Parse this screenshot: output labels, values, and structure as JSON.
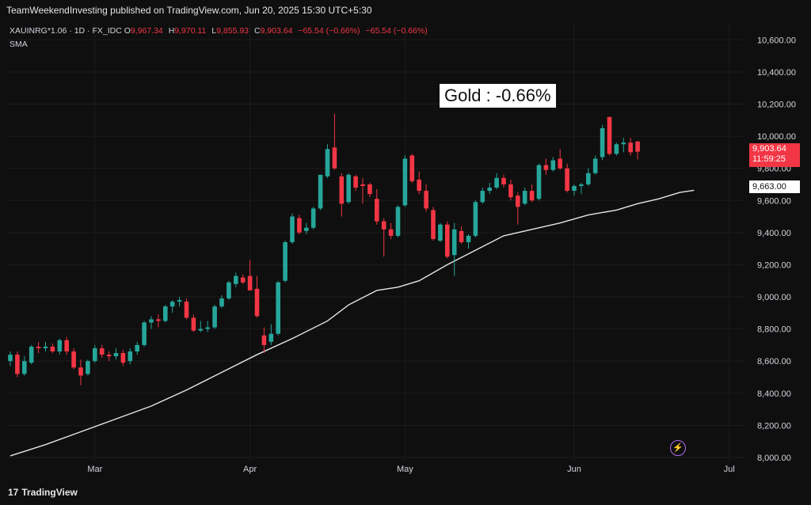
{
  "header": {
    "published": "TeamWeekendInvesting published on TradingView.com, Jun 20, 2025 15:30 UTC+5:30"
  },
  "legend": {
    "symbol": "XAUINRG*1.06 · 1D · FX_IDC",
    "o_label": "O",
    "o_value": "9,967.34",
    "h_label": "H",
    "h_value": "9,970.11",
    "l_label": "L",
    "l_value": "9,855.93",
    "c_label": "C",
    "c_value": "9,903.64",
    "change": "−65.54 (−0.66%)",
    "change2": "−65.54 (−0.66%)",
    "indicator": "SMA"
  },
  "annotation": "Gold : -0.66%",
  "price_tags": {
    "last_price": "9,903.64",
    "countdown": "11:59:25",
    "sma_value": "9,663.00"
  },
  "footer": {
    "brand": "TradingView",
    "brand_mark": "17"
  },
  "colors": {
    "up": "#26a69a",
    "down": "#f23645",
    "sma": "#e6e6e6",
    "background": "#0f0f0f",
    "grid": "#1c1c1c"
  },
  "chart_data": {
    "type": "candlestick",
    "title": "",
    "xlabel": "",
    "ylabel": "",
    "ylim": [
      7980,
      10710
    ],
    "y_ticks": [
      "8,000.00",
      "8,200.00",
      "8,400.00",
      "8,600.00",
      "8,800.00",
      "9,000.00",
      "9,200.00",
      "9,400.00",
      "9,600.00",
      "9,800.00",
      "10,000.00",
      "10,200.00",
      "10,400.00",
      "10,600.00"
    ],
    "x_ticks": [
      "Mar",
      "Apr",
      "May",
      "Jun",
      "Jul"
    ],
    "grid": true,
    "candles": [
      {
        "o": 8600,
        "h": 8660,
        "l": 8570,
        "c": 8640
      },
      {
        "o": 8640,
        "h": 8660,
        "l": 8500,
        "c": 8520
      },
      {
        "o": 8520,
        "h": 8630,
        "l": 8510,
        "c": 8600
      },
      {
        "o": 8590,
        "h": 8700,
        "l": 8580,
        "c": 8690
      },
      {
        "o": 8690,
        "h": 8720,
        "l": 8650,
        "c": 8680
      },
      {
        "o": 8680,
        "h": 8720,
        "l": 8660,
        "c": 8690
      },
      {
        "o": 8690,
        "h": 8710,
        "l": 8650,
        "c": 8660
      },
      {
        "o": 8660,
        "h": 8740,
        "l": 8640,
        "c": 8730
      },
      {
        "o": 8730,
        "h": 8750,
        "l": 8640,
        "c": 8660
      },
      {
        "o": 8660,
        "h": 8680,
        "l": 8550,
        "c": 8560
      },
      {
        "o": 8560,
        "h": 8610,
        "l": 8450,
        "c": 8510
      },
      {
        "o": 8520,
        "h": 8610,
        "l": 8510,
        "c": 8600
      },
      {
        "o": 8600,
        "h": 8700,
        "l": 8590,
        "c": 8680
      },
      {
        "o": 8680,
        "h": 8700,
        "l": 8620,
        "c": 8640
      },
      {
        "o": 8640,
        "h": 8660,
        "l": 8600,
        "c": 8630
      },
      {
        "o": 8630,
        "h": 8680,
        "l": 8610,
        "c": 8650
      },
      {
        "o": 8650,
        "h": 8670,
        "l": 8570,
        "c": 8590
      },
      {
        "o": 8600,
        "h": 8680,
        "l": 8580,
        "c": 8660
      },
      {
        "o": 8660,
        "h": 8720,
        "l": 8640,
        "c": 8700
      },
      {
        "o": 8700,
        "h": 8850,
        "l": 8690,
        "c": 8840
      },
      {
        "o": 8840,
        "h": 8880,
        "l": 8800,
        "c": 8860
      },
      {
        "o": 8860,
        "h": 8890,
        "l": 8810,
        "c": 8850
      },
      {
        "o": 8850,
        "h": 8950,
        "l": 8840,
        "c": 8940
      },
      {
        "o": 8940,
        "h": 8980,
        "l": 8900,
        "c": 8970
      },
      {
        "o": 8970,
        "h": 9000,
        "l": 8940,
        "c": 8980
      },
      {
        "o": 8970,
        "h": 8990,
        "l": 8860,
        "c": 8870
      },
      {
        "o": 8870,
        "h": 8890,
        "l": 8780,
        "c": 8790
      },
      {
        "o": 8790,
        "h": 8850,
        "l": 8780,
        "c": 8800
      },
      {
        "o": 8800,
        "h": 8850,
        "l": 8780,
        "c": 8810
      },
      {
        "o": 8810,
        "h": 8950,
        "l": 8800,
        "c": 8940
      },
      {
        "o": 8940,
        "h": 9010,
        "l": 8930,
        "c": 8990
      },
      {
        "o": 8990,
        "h": 9100,
        "l": 8980,
        "c": 9090
      },
      {
        "o": 9080,
        "h": 9150,
        "l": 9060,
        "c": 9130
      },
      {
        "o": 9120,
        "h": 9140,
        "l": 9080,
        "c": 9090
      },
      {
        "o": 9130,
        "h": 9230,
        "l": 9040,
        "c": 9040
      },
      {
        "o": 9050,
        "h": 9130,
        "l": 8870,
        "c": 8880
      },
      {
        "o": 8760,
        "h": 8810,
        "l": 8650,
        "c": 8700
      },
      {
        "o": 8720,
        "h": 8830,
        "l": 8700,
        "c": 8770
      },
      {
        "o": 8770,
        "h": 9100,
        "l": 8760,
        "c": 9090
      },
      {
        "o": 9100,
        "h": 9350,
        "l": 9090,
        "c": 9340
      },
      {
        "o": 9340,
        "h": 9520,
        "l": 9330,
        "c": 9500
      },
      {
        "o": 9490,
        "h": 9510,
        "l": 9390,
        "c": 9400
      },
      {
        "o": 9410,
        "h": 9460,
        "l": 9390,
        "c": 9430
      },
      {
        "o": 9430,
        "h": 9560,
        "l": 9420,
        "c": 9550
      },
      {
        "o": 9550,
        "h": 9760,
        "l": 9540,
        "c": 9760
      },
      {
        "o": 9750,
        "h": 9950,
        "l": 9740,
        "c": 9920
      },
      {
        "o": 9930,
        "h": 10140,
        "l": 9790,
        "c": 9800
      },
      {
        "o": 9750,
        "h": 9770,
        "l": 9500,
        "c": 9580
      },
      {
        "o": 9590,
        "h": 9770,
        "l": 9580,
        "c": 9760
      },
      {
        "o": 9750,
        "h": 9760,
        "l": 9660,
        "c": 9680
      },
      {
        "o": 9700,
        "h": 9740,
        "l": 9580,
        "c": 9690
      },
      {
        "o": 9700,
        "h": 9710,
        "l": 9620,
        "c": 9640
      },
      {
        "o": 9610,
        "h": 9670,
        "l": 9450,
        "c": 9470
      },
      {
        "o": 9470,
        "h": 9490,
        "l": 9250,
        "c": 9420
      },
      {
        "o": 9420,
        "h": 9460,
        "l": 9360,
        "c": 9380
      },
      {
        "o": 9380,
        "h": 9570,
        "l": 9370,
        "c": 9560
      },
      {
        "o": 9570,
        "h": 9880,
        "l": 9560,
        "c": 9860
      },
      {
        "o": 9880,
        "h": 9890,
        "l": 9710,
        "c": 9720
      },
      {
        "o": 9730,
        "h": 9780,
        "l": 9640,
        "c": 9660
      },
      {
        "o": 9660,
        "h": 9700,
        "l": 9530,
        "c": 9550
      },
      {
        "o": 9540,
        "h": 9560,
        "l": 9350,
        "c": 9360
      },
      {
        "o": 9350,
        "h": 9460,
        "l": 9340,
        "c": 9450
      },
      {
        "o": 9450,
        "h": 9470,
        "l": 9240,
        "c": 9250
      },
      {
        "o": 9260,
        "h": 9460,
        "l": 9130,
        "c": 9420
      },
      {
        "o": 9410,
        "h": 9440,
        "l": 9330,
        "c": 9340
      },
      {
        "o": 9340,
        "h": 9390,
        "l": 9300,
        "c": 9380
      },
      {
        "o": 9380,
        "h": 9600,
        "l": 9370,
        "c": 9590
      },
      {
        "o": 9590,
        "h": 9680,
        "l": 9580,
        "c": 9660
      },
      {
        "o": 9660,
        "h": 9710,
        "l": 9640,
        "c": 9680
      },
      {
        "o": 9680,
        "h": 9770,
        "l": 9670,
        "c": 9740
      },
      {
        "o": 9740,
        "h": 9760,
        "l": 9680,
        "c": 9700
      },
      {
        "o": 9700,
        "h": 9730,
        "l": 9600,
        "c": 9620
      },
      {
        "o": 9630,
        "h": 9650,
        "l": 9450,
        "c": 9560
      },
      {
        "o": 9580,
        "h": 9680,
        "l": 9570,
        "c": 9660
      },
      {
        "o": 9660,
        "h": 9700,
        "l": 9590,
        "c": 9600
      },
      {
        "o": 9610,
        "h": 9830,
        "l": 9600,
        "c": 9820
      },
      {
        "o": 9820,
        "h": 9860,
        "l": 9760,
        "c": 9790
      },
      {
        "o": 9790,
        "h": 9870,
        "l": 9780,
        "c": 9850
      },
      {
        "o": 9860,
        "h": 9920,
        "l": 9790,
        "c": 9800
      },
      {
        "o": 9800,
        "h": 9830,
        "l": 9650,
        "c": 9660
      },
      {
        "o": 9660,
        "h": 9700,
        "l": 9630,
        "c": 9690
      },
      {
        "o": 9690,
        "h": 9710,
        "l": 9640,
        "c": 9700
      },
      {
        "o": 9700,
        "h": 9800,
        "l": 9690,
        "c": 9770
      },
      {
        "o": 9770,
        "h": 9880,
        "l": 9760,
        "c": 9860
      },
      {
        "o": 9870,
        "h": 10070,
        "l": 9850,
        "c": 10050
      },
      {
        "o": 10120,
        "h": 10120,
        "l": 9880,
        "c": 9890
      },
      {
        "o": 9890,
        "h": 9960,
        "l": 9880,
        "c": 9950
      },
      {
        "o": 9950,
        "h": 9990,
        "l": 9900,
        "c": 9960
      },
      {
        "o": 9960,
        "h": 9990,
        "l": 9880,
        "c": 9900
      },
      {
        "o": 9967.34,
        "h": 9970.11,
        "l": 9855.93,
        "c": 9903.64
      }
    ],
    "sma": [
      [
        0,
        8010
      ],
      [
        5,
        8080
      ],
      [
        10,
        8160
      ],
      [
        15,
        8240
      ],
      [
        20,
        8320
      ],
      [
        25,
        8420
      ],
      [
        30,
        8530
      ],
      [
        35,
        8640
      ],
      [
        40,
        8740
      ],
      [
        45,
        8850
      ],
      [
        48,
        8950
      ],
      [
        52,
        9040
      ],
      [
        55,
        9060
      ],
      [
        58,
        9100
      ],
      [
        62,
        9200
      ],
      [
        66,
        9290
      ],
      [
        70,
        9380
      ],
      [
        74,
        9420
      ],
      [
        78,
        9460
      ],
      [
        82,
        9510
      ],
      [
        86,
        9540
      ],
      [
        89,
        9580
      ],
      [
        92,
        9610
      ],
      [
        95,
        9650
      ],
      [
        97,
        9663
      ]
    ]
  }
}
